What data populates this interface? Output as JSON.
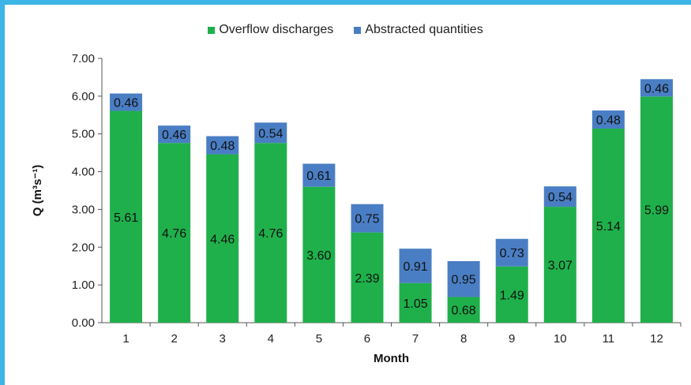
{
  "colors": {
    "frame": "#3db5e6",
    "overflow": "#1fb04b",
    "abstracted": "#4a7ec4",
    "axis": "#555555"
  },
  "chart_data": {
    "type": "bar",
    "stacked": true,
    "categories": [
      "1",
      "2",
      "3",
      "4",
      "5",
      "6",
      "7",
      "8",
      "9",
      "10",
      "11",
      "12"
    ],
    "series": [
      {
        "name": "Overflow discharges",
        "values": [
          5.61,
          4.76,
          4.46,
          4.76,
          3.6,
          2.39,
          1.05,
          0.68,
          1.49,
          3.07,
          5.14,
          5.99
        ],
        "labels": [
          "5.61",
          "4.76",
          "4.46",
          "4.76",
          "3.60",
          "2.39",
          "1.05",
          "0.68",
          "1.49",
          "3.07",
          "5.14",
          "5.99"
        ]
      },
      {
        "name": "Abstracted quantities",
        "values": [
          0.46,
          0.46,
          0.48,
          0.54,
          0.61,
          0.75,
          0.91,
          0.95,
          0.73,
          0.54,
          0.48,
          0.46
        ],
        "labels": [
          "0.46",
          "0.46",
          "0.48",
          "0.54",
          "0.61",
          "0.75",
          "0.91",
          "0.95",
          "0.73",
          "0.54",
          "0.48",
          "0.46"
        ]
      }
    ],
    "xlabel": "Month",
    "ylabel": "Q (m³s⁻¹)",
    "ylim": [
      0,
      7
    ],
    "yticks": [
      "0.00",
      "1.00",
      "2.00",
      "3.00",
      "4.00",
      "5.00",
      "6.00",
      "7.00"
    ],
    "legend": "top-center",
    "grid": false
  }
}
